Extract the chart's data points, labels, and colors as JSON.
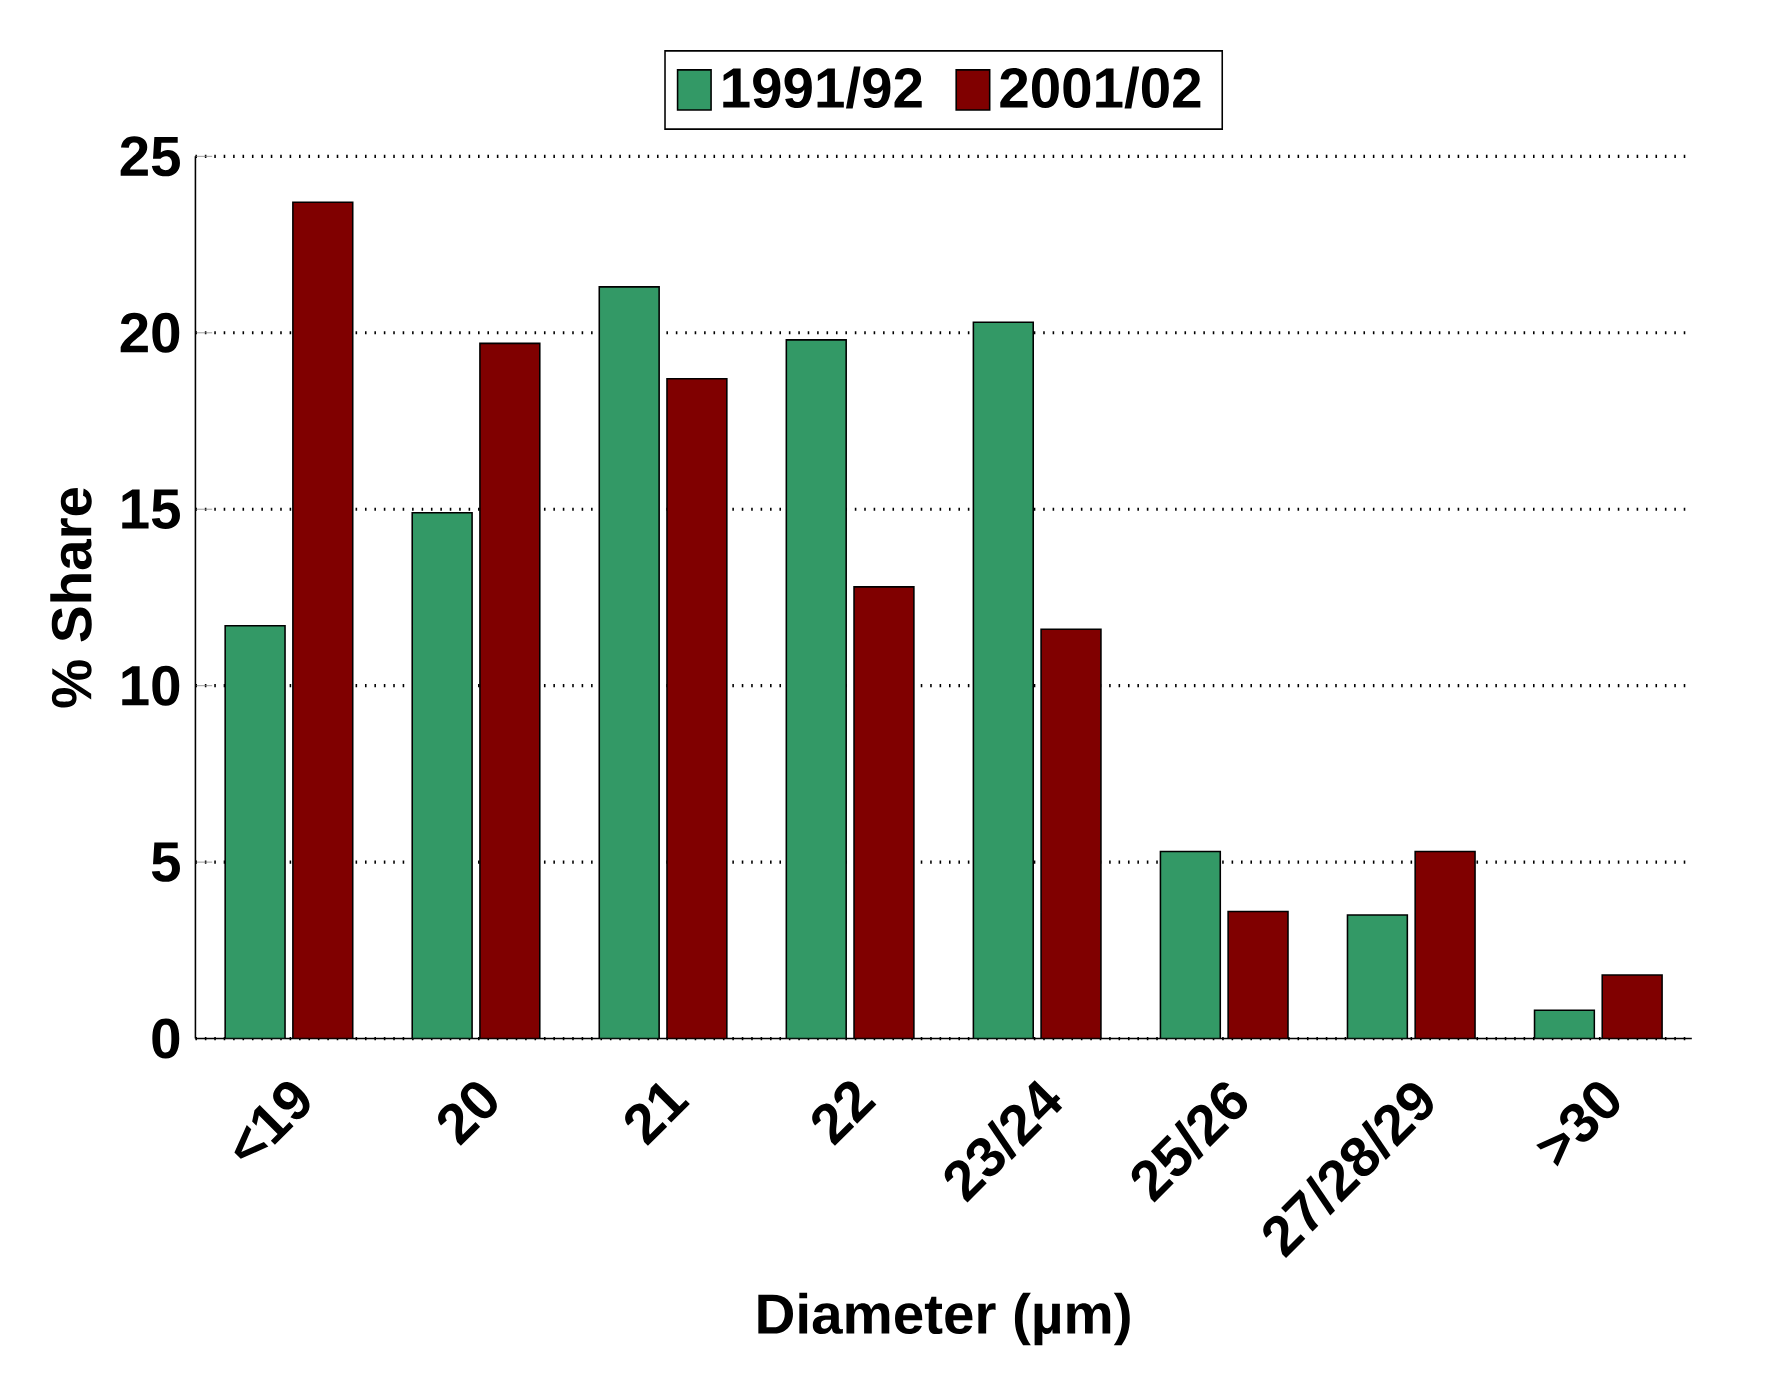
{
  "chart_data": {
    "type": "bar",
    "xlabel": "Diameter (µm)",
    "ylabel": "% Share",
    "categories": [
      "<19",
      "20",
      "21",
      "22",
      "23/24",
      "25/26",
      "27/28/29",
      ">30"
    ],
    "series": [
      {
        "name": "1991/92",
        "color": "#339966",
        "values": [
          11.7,
          14.9,
          21.3,
          19.8,
          20.3,
          5.3,
          3.5,
          0.8
        ]
      },
      {
        "name": "2001/02",
        "color": "#800000",
        "values": [
          23.7,
          19.7,
          18.7,
          12.8,
          11.6,
          3.6,
          5.3,
          1.8
        ]
      }
    ],
    "ylim": [
      0,
      25
    ],
    "yticks": [
      0,
      5,
      10,
      15,
      20,
      25
    ],
    "grid": "y",
    "legend": "top"
  }
}
